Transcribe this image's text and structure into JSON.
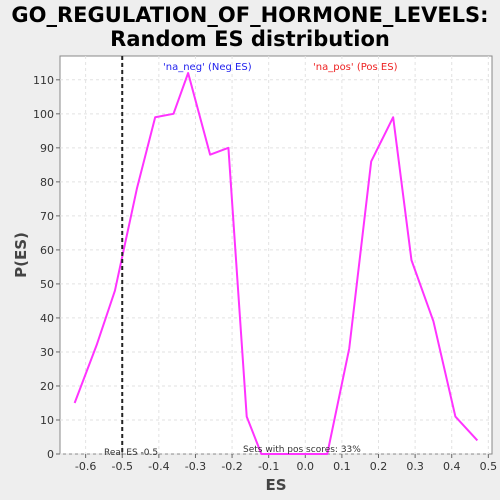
{
  "title_line1": "GO_REGULATION_OF_HORMONE_LEVELS:",
  "title_line2": "Random ES distribution",
  "chart_data": {
    "type": "line",
    "xlabel": "ES",
    "ylabel": "P(ES)",
    "xlim": [
      -0.67,
      0.51
    ],
    "ylim": [
      0,
      117
    ],
    "xticks": [
      -0.6,
      -0.5,
      -0.4,
      -0.3,
      -0.2,
      -0.1,
      0.0,
      0.1,
      0.2,
      0.3,
      0.4,
      0.5
    ],
    "xtick_labels": [
      "-0.6",
      "-0.5",
      "-0.4",
      "-0.3",
      "-0.2",
      "-0.1",
      "0.0",
      "0.1",
      "0.2",
      "0.3",
      "0.4",
      "0.5"
    ],
    "yticks": [
      0,
      10,
      20,
      30,
      40,
      50,
      60,
      70,
      80,
      90,
      100,
      110
    ],
    "ytick_labels": [
      "0",
      "10",
      "20",
      "30",
      "40",
      "50",
      "60",
      "70",
      "80",
      "90",
      "100",
      "110"
    ],
    "grid": true,
    "legend": [
      {
        "label": "'na_neg' (Neg ES)",
        "color": "#2222ee"
      },
      {
        "label": "'na_pos' (Pos ES)",
        "color": "#ee2222"
      }
    ],
    "series": [
      {
        "color": "#ff33ff",
        "x": [
          -0.63,
          -0.57,
          -0.52,
          -0.5,
          -0.46,
          -0.41,
          -0.36,
          -0.32,
          -0.26,
          -0.21,
          -0.16,
          -0.12,
          -0.06,
          0.06,
          0.12,
          0.18,
          0.24,
          0.29,
          0.35,
          0.41,
          0.47
        ],
        "y": [
          15,
          32,
          48,
          58,
          78,
          99,
          100,
          112,
          88,
          90,
          11,
          0,
          0,
          0,
          31,
          86,
          99,
          57,
          39,
          11,
          4
        ]
      }
    ],
    "real_es": -0.5,
    "annotations": {
      "real_es_label": "Real ES -0.5",
      "pos_scores_label": "Sets with pos scores: 33%"
    }
  }
}
